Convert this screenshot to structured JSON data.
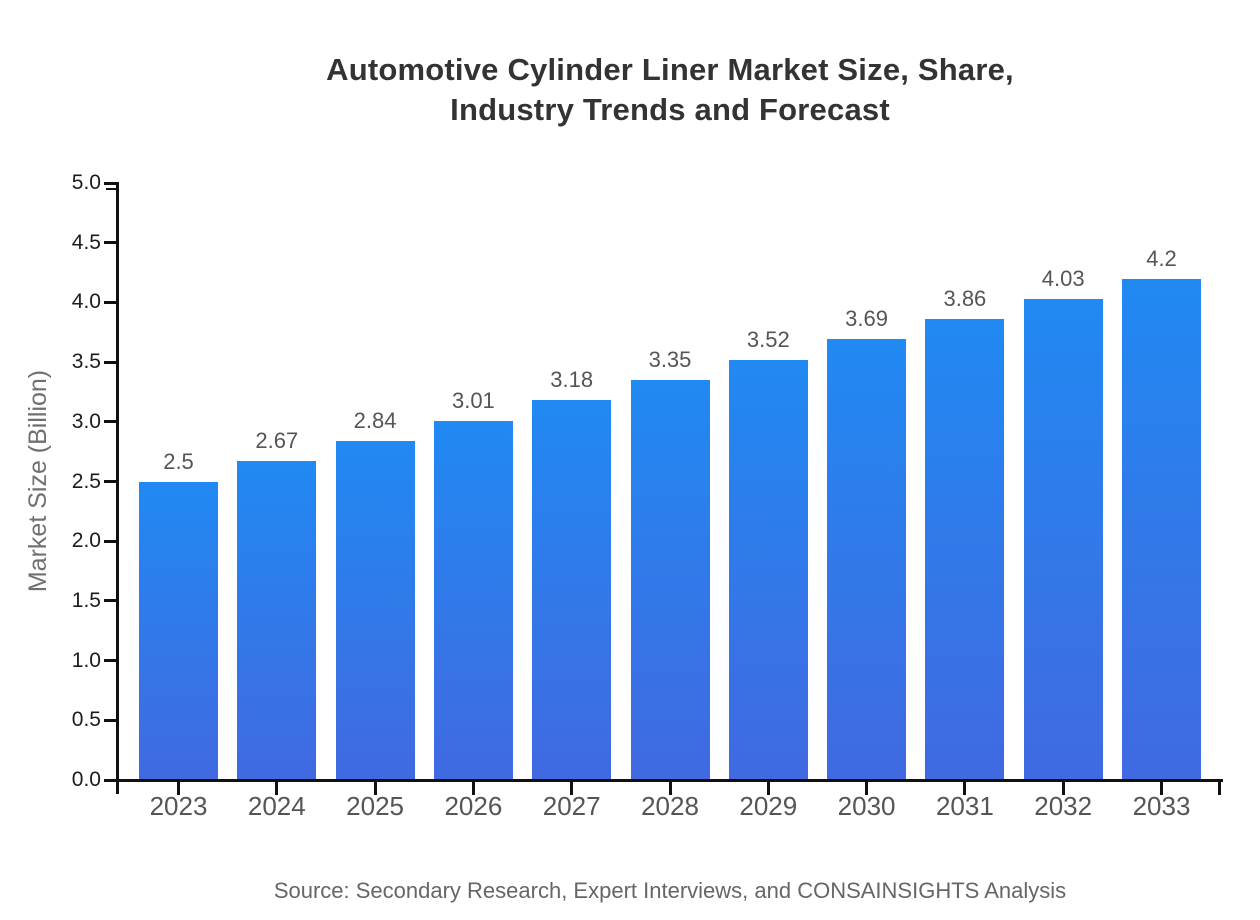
{
  "header": {
    "title_line1": "Automotive Cylinder Liner Market Size, Share,",
    "title_line2": "Industry Trends and Forecast"
  },
  "footer": {
    "source": "Source: Secondary Research, Expert Interviews, and CONSAINSIGHTS Analysis"
  },
  "chart_data": {
    "type": "bar",
    "title": "Automotive Cylinder Liner Market Size, Share, Industry Trends and Forecast",
    "categories": [
      "2023",
      "2024",
      "2025",
      "2026",
      "2027",
      "2028",
      "2029",
      "2030",
      "2031",
      "2032",
      "2033"
    ],
    "values": [
      2.5,
      2.67,
      2.84,
      3.01,
      3.18,
      3.35,
      3.52,
      3.69,
      3.86,
      4.03,
      4.2
    ],
    "value_labels": [
      "2.5",
      "2.67",
      "2.84",
      "3.01",
      "3.18",
      "3.35",
      "3.52",
      "3.69",
      "3.86",
      "4.03",
      "4.2"
    ],
    "xlabel": "",
    "ylabel": "Market Size (Billion)",
    "ylim": [
      0.0,
      5.0
    ],
    "ytick_step": 0.5,
    "ytick_labels": [
      "0.0",
      "0.5",
      "1.0",
      "1.5",
      "2.0",
      "2.5",
      "3.0",
      "3.5",
      "4.0",
      "4.5",
      "5.0"
    ],
    "grid": false,
    "legend": "none",
    "colors": {
      "bar_gradient_top": "#2189F2",
      "bar_gradient_bottom": "#4169E1",
      "axis": "#111111",
      "ytick_label": "#1c1c1c",
      "category_label": "#555555",
      "value_label": "#555555",
      "title": "#333333",
      "ylabel": "#707070",
      "source": "#666666"
    }
  }
}
